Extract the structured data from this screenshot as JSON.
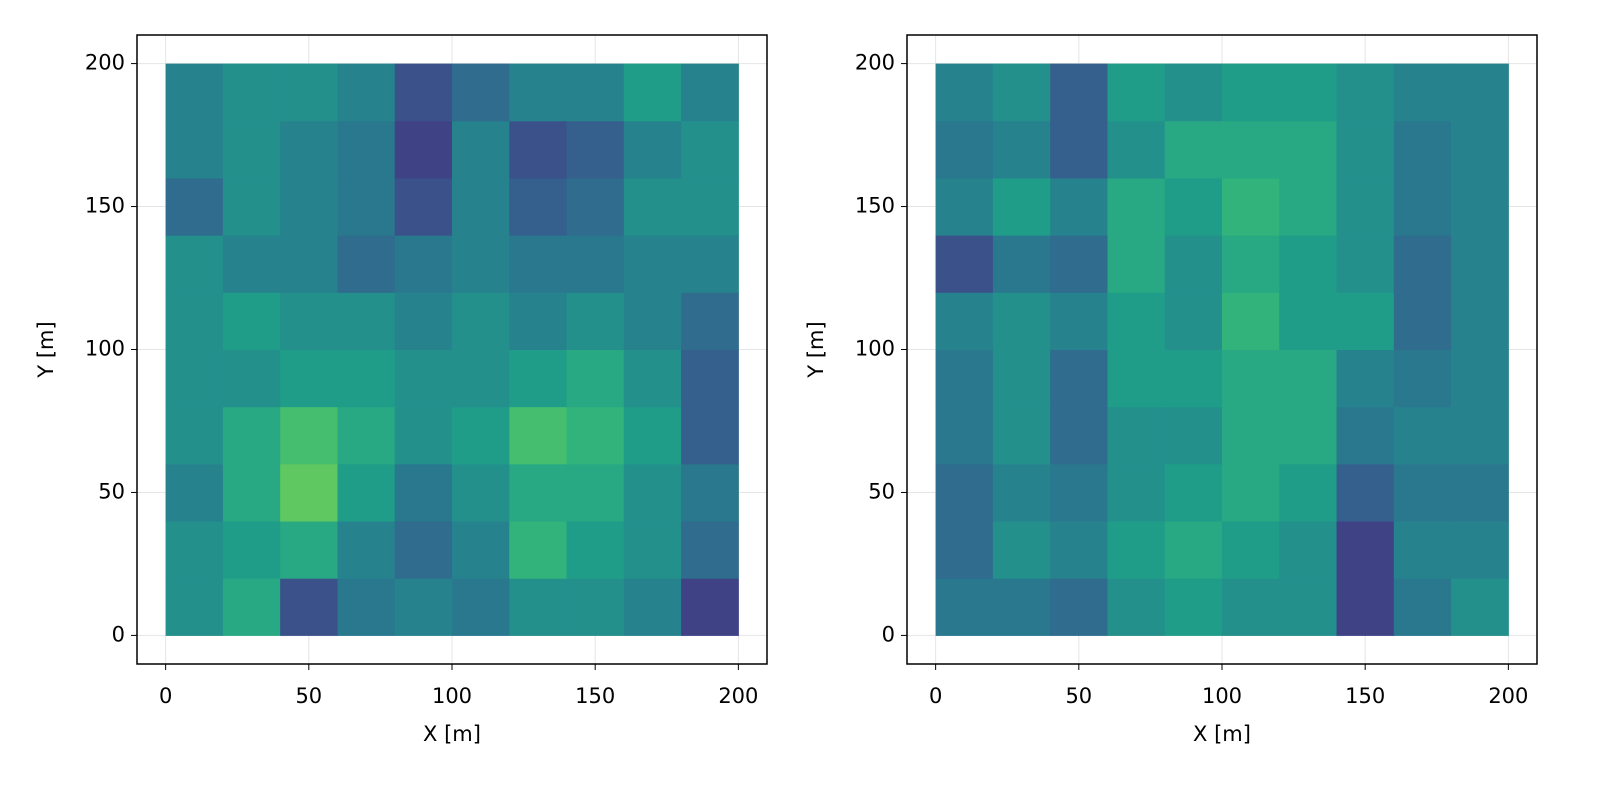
{
  "chart_data": [
    {
      "type": "heatmap",
      "xlabel": "X [m]",
      "ylabel": "Y [m]",
      "colormap": "viridis",
      "grid": true,
      "xlim": [
        -10,
        210
      ],
      "ylim": [
        -10,
        210
      ],
      "xticks": [
        0,
        50,
        100,
        150,
        200
      ],
      "yticks": [
        0,
        50,
        100,
        150,
        200
      ],
      "x": [
        10,
        30,
        50,
        70,
        90,
        110,
        130,
        150,
        170,
        190
      ],
      "y": [
        10,
        30,
        50,
        70,
        90,
        110,
        130,
        150,
        170,
        190
      ],
      "z": [
        [
          0.5,
          0.6,
          0.25,
          0.4,
          0.45,
          0.4,
          0.5,
          0.5,
          0.45,
          0.2
        ],
        [
          0.5,
          0.55,
          0.6,
          0.45,
          0.35,
          0.45,
          0.65,
          0.55,
          0.5,
          0.35
        ],
        [
          0.45,
          0.6,
          0.75,
          0.55,
          0.4,
          0.5,
          0.6,
          0.6,
          0.5,
          0.4
        ],
        [
          0.5,
          0.6,
          0.7,
          0.6,
          0.5,
          0.55,
          0.7,
          0.65,
          0.55,
          0.3
        ],
        [
          0.5,
          0.5,
          0.55,
          0.55,
          0.5,
          0.5,
          0.55,
          0.6,
          0.5,
          0.3
        ],
        [
          0.5,
          0.55,
          0.5,
          0.5,
          0.45,
          0.5,
          0.45,
          0.5,
          0.45,
          0.35
        ],
        [
          0.5,
          0.45,
          0.45,
          0.35,
          0.4,
          0.45,
          0.4,
          0.4,
          0.45,
          0.45
        ],
        [
          0.35,
          0.5,
          0.45,
          0.4,
          0.25,
          0.45,
          0.3,
          0.35,
          0.5,
          0.5
        ],
        [
          0.45,
          0.5,
          0.45,
          0.4,
          0.2,
          0.45,
          0.25,
          0.3,
          0.45,
          0.5
        ],
        [
          0.45,
          0.5,
          0.5,
          0.45,
          0.25,
          0.35,
          0.45,
          0.45,
          0.55,
          0.45
        ]
      ]
    },
    {
      "type": "heatmap",
      "xlabel": "X [m]",
      "ylabel": "Y [m]",
      "colormap": "viridis",
      "grid": true,
      "xlim": [
        -10,
        210
      ],
      "ylim": [
        -10,
        210
      ],
      "xticks": [
        0,
        50,
        100,
        150,
        200
      ],
      "yticks": [
        0,
        50,
        100,
        150,
        200
      ],
      "x": [
        10,
        30,
        50,
        70,
        90,
        110,
        130,
        150,
        170,
        190
      ],
      "y": [
        10,
        30,
        50,
        70,
        90,
        110,
        130,
        150,
        170,
        190
      ],
      "z": [
        [
          0.4,
          0.4,
          0.35,
          0.5,
          0.55,
          0.5,
          0.5,
          0.2,
          0.4,
          0.5
        ],
        [
          0.35,
          0.5,
          0.45,
          0.55,
          0.6,
          0.55,
          0.5,
          0.2,
          0.45,
          0.45
        ],
        [
          0.35,
          0.45,
          0.4,
          0.5,
          0.55,
          0.6,
          0.55,
          0.3,
          0.4,
          0.4
        ],
        [
          0.4,
          0.5,
          0.35,
          0.5,
          0.5,
          0.6,
          0.6,
          0.4,
          0.45,
          0.45
        ],
        [
          0.4,
          0.5,
          0.35,
          0.55,
          0.55,
          0.6,
          0.6,
          0.45,
          0.4,
          0.45
        ],
        [
          0.45,
          0.5,
          0.45,
          0.55,
          0.5,
          0.65,
          0.55,
          0.55,
          0.35,
          0.45
        ],
        [
          0.25,
          0.4,
          0.35,
          0.6,
          0.5,
          0.6,
          0.55,
          0.5,
          0.35,
          0.45
        ],
        [
          0.45,
          0.55,
          0.45,
          0.6,
          0.55,
          0.65,
          0.6,
          0.5,
          0.4,
          0.45
        ],
        [
          0.4,
          0.45,
          0.3,
          0.5,
          0.6,
          0.6,
          0.6,
          0.5,
          0.4,
          0.45
        ],
        [
          0.45,
          0.5,
          0.3,
          0.55,
          0.5,
          0.55,
          0.55,
          0.5,
          0.45,
          0.45
        ]
      ]
    }
  ]
}
